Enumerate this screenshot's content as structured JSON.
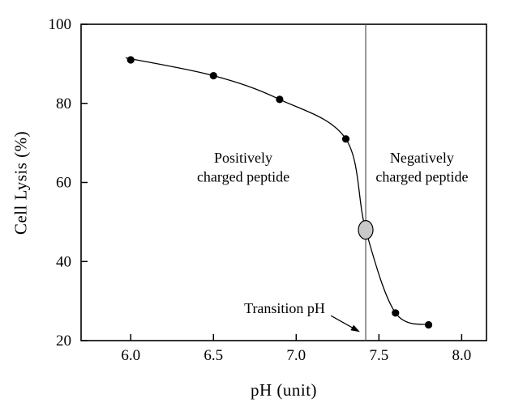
{
  "figure": {
    "background": "#ffffff",
    "axis_color": "#000000"
  },
  "chart_data": {
    "type": "scatter",
    "title": "",
    "xlabel": "pH (unit)",
    "ylabel": "Cell Lysis (%)",
    "xlim": [
      5.7,
      8.15
    ],
    "ylim": [
      20,
      100
    ],
    "xticks": [
      "6.0",
      "6.5",
      "7.0",
      "7.5",
      "8.0"
    ],
    "xtick_values": [
      6.0,
      6.5,
      7.0,
      7.5,
      8.0
    ],
    "yticks": [
      "20",
      "40",
      "60",
      "80",
      "100"
    ],
    "ytick_values": [
      20,
      40,
      60,
      80,
      100
    ],
    "grid": false,
    "legend": "none",
    "series": [
      {
        "name": "cell-lysis-data",
        "marker": "circle",
        "color": "#000000",
        "x": [
          6.0,
          6.5,
          6.9,
          7.3,
          7.6,
          7.8
        ],
        "y": [
          91,
          87,
          81,
          71,
          27,
          24
        ]
      }
    ],
    "fit_curve": {
      "name": "sigmoid-fit-curve",
      "color": "#000000",
      "x": [
        5.97,
        6.5,
        6.9,
        7.3,
        7.42,
        7.6,
        7.82
      ],
      "y": [
        91.5,
        87,
        81,
        71,
        48,
        27,
        24
      ]
    },
    "transition_point": {
      "x": 7.42,
      "y": 48,
      "fill": "#c9c9c9",
      "stroke": "#000000"
    },
    "vline": {
      "x": 7.42,
      "color": "#444444"
    },
    "annotations": [
      {
        "name": "positively-charged-label",
        "lines": [
          "Positively",
          "charged peptide"
        ],
        "x": 6.68,
        "y": 65
      },
      {
        "name": "negatively-charged-label",
        "lines": [
          "Negatively",
          "charged peptide"
        ],
        "x": 7.76,
        "y": 65
      },
      {
        "name": "transition-ph-label",
        "lines": [
          "Transition pH"
        ],
        "x": 6.93,
        "y": 27
      }
    ],
    "arrow": {
      "x1": 7.21,
      "y1": 26.3,
      "x2": 7.385,
      "y2": 22.2
    }
  }
}
